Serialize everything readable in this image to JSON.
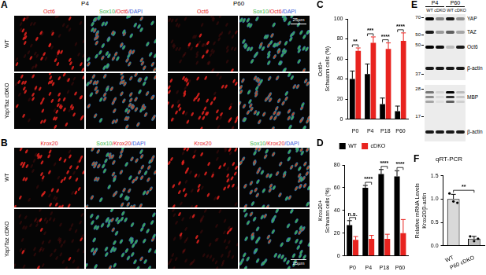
{
  "figure": {
    "micrographs": [
      {
        "panel": "A",
        "timepoints": [
          "P4",
          "P60"
        ],
        "rows": [
          "WT",
          "Yap/Taz cDKO"
        ],
        "columns": [
          [
            {
              "text": "Oct6",
              "color": "#e8231f"
            }
          ],
          [
            {
              "text": "Sox10",
              "color": "#3cb94a"
            },
            {
              "text": "/Oct6",
              "color": "#e8231f"
            },
            {
              "text": "/DAPI",
              "color": "#3a5bd9"
            }
          ]
        ],
        "scale_bar": "25µm"
      },
      {
        "panel": "B",
        "rows": [
          "WT",
          "Yap/Taz cDKO"
        ],
        "columns": [
          [
            {
              "text": "Krox20",
              "color": "#e8231f"
            }
          ],
          [
            {
              "text": "Sox10",
              "color": "#3cb94a"
            },
            {
              "text": "/Krox20",
              "color": "#e8231f"
            },
            {
              "text": "/DAPI",
              "color": "#3a5bd9"
            }
          ]
        ],
        "scale_bar": "25µm"
      }
    ],
    "blot": {
      "panel": "E",
      "timepoints": [
        "P4",
        "P60"
      ],
      "lanes": [
        "WT",
        "cDKO",
        "WT",
        "cDKO"
      ],
      "membranes": [
        {
          "markers": [
            70,
            50,
            50,
            37
          ],
          "proteins": [
            "YAP",
            "TAZ",
            "Oct6",
            "β-actin"
          ]
        },
        {
          "markers": [
            28,
            17
          ],
          "proteins": [
            "MBP",
            "β-actin"
          ]
        }
      ]
    }
  },
  "chart_data": [
    {
      "panel": "C",
      "type": "bar",
      "y_label": [
        "Oct6+",
        "Schwann cells (%)"
      ],
      "categories": [
        "P0",
        "P4",
        "P18",
        "P60"
      ],
      "series": [
        {
          "name": "WT",
          "color": "#000000",
          "values": [
            40,
            45,
            15,
            8
          ],
          "errors": [
            8,
            10,
            6,
            5
          ]
        },
        {
          "name": "cDKO",
          "color": "#e8231f",
          "values": [
            68,
            76,
            70,
            78
          ],
          "errors": [
            3,
            6,
            6,
            8
          ]
        }
      ],
      "ylim": [
        0,
        100
      ],
      "yticks": [
        0,
        20,
        40,
        60,
        80,
        100
      ],
      "grid": false,
      "annotations": [
        {
          "category": "P0",
          "text": "**"
        },
        {
          "category": "P4",
          "text": "***"
        },
        {
          "category": "P18",
          "text": "****"
        },
        {
          "category": "P60",
          "text": "****"
        }
      ]
    },
    {
      "panel": "D",
      "type": "bar",
      "y_label": [
        "Krox20+",
        "Schwann cells (%)"
      ],
      "categories": [
        "P0",
        "P4",
        "P18",
        "P60"
      ],
      "series": [
        {
          "name": "WT",
          "color": "#000000",
          "values": [
            27,
            60,
            72,
            70
          ],
          "errors": [
            4,
            2,
            4,
            5
          ]
        },
        {
          "name": "cDKO",
          "color": "#e8231f",
          "values": [
            14,
            15,
            15,
            20
          ],
          "errors": [
            3,
            3,
            4,
            12
          ]
        }
      ],
      "ylim": [
        0,
        80
      ],
      "yticks": [
        0,
        20,
        40,
        60,
        80
      ],
      "grid": false,
      "legend": "top",
      "annotations": [
        {
          "category": "P0",
          "text": "n.s."
        },
        {
          "category": "P4",
          "text": "****"
        },
        {
          "category": "P18",
          "text": "****"
        },
        {
          "category": "P60",
          "text": "****"
        }
      ]
    },
    {
      "panel": "F",
      "type": "bar",
      "title": "qRT-PCR",
      "y_label": [
        "Relative mRNA Levels",
        "Krox20/β-actin"
      ],
      "categories": [
        "WT",
        "P60 cDKO"
      ],
      "values": [
        1.0,
        0.15
      ],
      "errors": [
        0.1,
        0.05
      ],
      "points": [
        [
          1.12,
          0.95,
          0.92
        ],
        [
          0.2,
          0.1,
          0.15
        ]
      ],
      "colors": [
        "#d9d9d9",
        "#bfbfbf"
      ],
      "ylim": [
        0,
        1.5
      ],
      "yticks": [
        {
          "value": 0,
          "label": "0.0"
        },
        0.5,
        {
          "value": 1,
          "label": "1.0"
        },
        1.5
      ],
      "grid": false,
      "annotations": [
        {
          "between": [
            "WT",
            "P60 cDKO"
          ],
          "text": "**"
        }
      ]
    }
  ]
}
